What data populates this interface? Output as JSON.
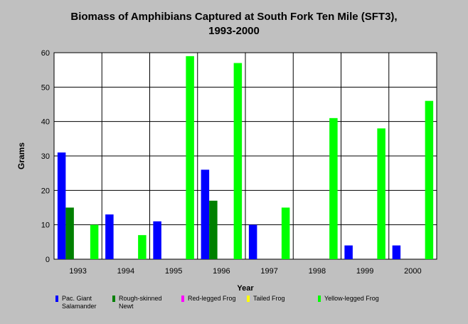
{
  "chart_data": {
    "type": "bar",
    "title": "Biomass of Amphibians Captured at South Fork Ten Mile (SFT3),",
    "subtitle": "1993-2000",
    "xlabel": "Year",
    "ylabel": "Grams",
    "ylim": [
      0,
      60
    ],
    "yticks": [
      0,
      10,
      20,
      30,
      40,
      50,
      60
    ],
    "grid": true,
    "legend_position": "bottom",
    "categories": [
      "1993",
      "1994",
      "1995",
      "1996",
      "1997",
      "1998",
      "1999",
      "2000"
    ],
    "series": [
      {
        "name": "Pac. Giant Salamander",
        "color": "#0000ff",
        "values": [
          31,
          13,
          11,
          26,
          10,
          0,
          4,
          4
        ]
      },
      {
        "name": "Rough-skinned Newt",
        "color": "#008000",
        "values": [
          15,
          0,
          0,
          17,
          0,
          0,
          0,
          0
        ]
      },
      {
        "name": "Red-legged Frog",
        "color": "#ff00ff",
        "values": [
          0,
          0,
          0,
          0,
          0,
          0,
          0,
          0
        ]
      },
      {
        "name": "Tailed Frog",
        "color": "#ffff00",
        "values": [
          0,
          0,
          0,
          0,
          0,
          0,
          0,
          0
        ]
      },
      {
        "name": "Yellow-legged Frog",
        "color": "#00ff00",
        "values": [
          10,
          7,
          59,
          57,
          15,
          41,
          38,
          46
        ]
      }
    ]
  },
  "legend": {
    "items": [
      {
        "line1": "Pac. Giant",
        "line2": "Salamander"
      },
      {
        "line1": "Rough-skinned",
        "line2": "Newt"
      },
      {
        "line1": "Red-legged Frog",
        "line2": ""
      },
      {
        "line1": "Tailed Frog",
        "line2": ""
      },
      {
        "line1": "Yellow-legged Frog",
        "line2": ""
      }
    ]
  }
}
